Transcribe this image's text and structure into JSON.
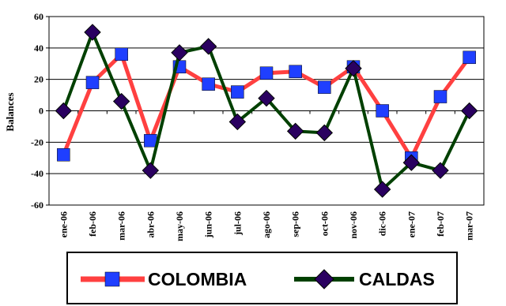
{
  "chart_data": {
    "type": "line",
    "title": "",
    "xlabel": "",
    "ylabel": "Balances",
    "ylim": [
      -60,
      60
    ],
    "yticks": [
      -60,
      -40,
      -20,
      0,
      20,
      40,
      60
    ],
    "grid": true,
    "legend_position": "bottom",
    "categories": [
      "ene-06",
      "feb-06",
      "mar-06",
      "abr-06",
      "may-06",
      "jun-06",
      "jul-06",
      "ago-06",
      "sep-06",
      "oct-06",
      "nov-06",
      "dic-06",
      "ene-07",
      "feb-07",
      "mar-07"
    ],
    "series": [
      {
        "name": "COLOMBIA",
        "color": "#ff4040",
        "marker": "square",
        "marker_color": "#1f3fff",
        "values": [
          -28,
          18,
          36,
          -19,
          28,
          17,
          12,
          24,
          25,
          15,
          28,
          0,
          -30,
          9,
          34
        ]
      },
      {
        "name": "CALDAS",
        "color": "#004000",
        "marker": "diamond",
        "marker_color": "#2a0060",
        "values": [
          0,
          50,
          6,
          -38,
          37,
          41,
          -7,
          8,
          -13,
          -14,
          27,
          -50,
          -33,
          -38,
          0
        ]
      }
    ]
  }
}
